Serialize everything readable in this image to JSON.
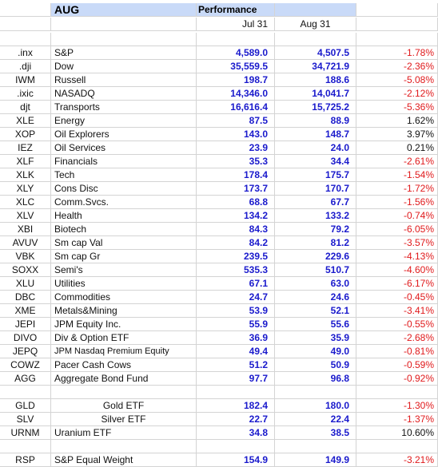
{
  "header": {
    "month": "AUG",
    "performance_label": "Performance"
  },
  "dates": {
    "start": "Jul 31",
    "end": "Aug 31"
  },
  "colors": {
    "header_fill": "#c9daf8",
    "value_blue": "#1a1acc",
    "negative_red": "#e0191b"
  },
  "rows": [
    {
      "ticker": "",
      "name": "",
      "start": "",
      "end": "",
      "change": "",
      "sign": "pos"
    },
    {
      "ticker": ".inx",
      "name": "S&P",
      "start": "4,589.0",
      "end": "4,507.5",
      "change": "-1.78%",
      "sign": "neg"
    },
    {
      "ticker": ".dji",
      "name": "Dow",
      "start": "35,559.5",
      "end": "34,721.9",
      "change": "-2.36%",
      "sign": "neg"
    },
    {
      "ticker": "IWM",
      "name": "Russell",
      "start": "198.7",
      "end": "188.6",
      "change": "-5.08%",
      "sign": "neg"
    },
    {
      "ticker": ".ixic",
      "name": "NASADQ",
      "start": "14,346.0",
      "end": "14,041.7",
      "change": "-2.12%",
      "sign": "neg"
    },
    {
      "ticker": "djt",
      "name": "Transports",
      "start": "16,616.4",
      "end": "15,725.2",
      "change": "-5.36%",
      "sign": "neg"
    },
    {
      "ticker": "XLE",
      "name": "Energy",
      "start": "87.5",
      "end": "88.9",
      "change": "1.62%",
      "sign": "pos"
    },
    {
      "ticker": "XOP",
      "name": "Oil Explorers",
      "start": "143.0",
      "end": "148.7",
      "change": "3.97%",
      "sign": "pos"
    },
    {
      "ticker": "IEZ",
      "name": "Oil Services",
      "start": "23.9",
      "end": "24.0",
      "change": "0.21%",
      "sign": "pos"
    },
    {
      "ticker": "XLF",
      "name": "Financials",
      "start": "35.3",
      "end": "34.4",
      "change": "-2.61%",
      "sign": "neg"
    },
    {
      "ticker": "XLK",
      "name": "Tech",
      "start": "178.4",
      "end": "175.7",
      "change": "-1.54%",
      "sign": "neg"
    },
    {
      "ticker": "XLY",
      "name": "Cons Disc",
      "start": "173.7",
      "end": "170.7",
      "change": "-1.72%",
      "sign": "neg"
    },
    {
      "ticker": "XLC",
      "name": "Comm.Svcs.",
      "start": "68.8",
      "end": "67.7",
      "change": "-1.56%",
      "sign": "neg"
    },
    {
      "ticker": "XLV",
      "name": "Health",
      "start": "134.2",
      "end": "133.2",
      "change": "-0.74%",
      "sign": "neg"
    },
    {
      "ticker": "XBI",
      "name": "Biotech",
      "start": "84.3",
      "end": "79.2",
      "change": "-6.05%",
      "sign": "neg"
    },
    {
      "ticker": "AVUV",
      "name": "Sm cap Val",
      "start": "84.2",
      "end": "81.2",
      "change": "-3.57%",
      "sign": "neg"
    },
    {
      "ticker": "VBK",
      "name": "Sm cap Gr",
      "start": "239.5",
      "end": "229.6",
      "change": "-4.13%",
      "sign": "neg"
    },
    {
      "ticker": "SOXX",
      "name": "Semi's",
      "start": "535.3",
      "end": "510.7",
      "change": "-4.60%",
      "sign": "neg"
    },
    {
      "ticker": "XLU",
      "name": "Utilities",
      "start": "67.1",
      "end": "63.0",
      "change": "-6.17%",
      "sign": "neg"
    },
    {
      "ticker": "DBC",
      "name": "Commodities",
      "start": "24.7",
      "end": "24.6",
      "change": "-0.45%",
      "sign": "neg"
    },
    {
      "ticker": "XME",
      "name": "Metals&Mining",
      "start": "53.9",
      "end": "52.1",
      "change": "-3.41%",
      "sign": "neg"
    },
    {
      "ticker": "JEPI",
      "name": "JPM  Equity Inc.",
      "start": "55.9",
      "end": "55.6",
      "change": "-0.55%",
      "sign": "neg"
    },
    {
      "ticker": "DIVO",
      "name": "Div & Option ETF",
      "start": "36.9",
      "end": "35.9",
      "change": "-2.68%",
      "sign": "neg"
    },
    {
      "ticker": "JEPQ",
      "name": "JPM Nasdaq Premium Equity",
      "start": "49.4",
      "end": "49.0",
      "change": "-0.81%",
      "sign": "neg",
      "small": true
    },
    {
      "ticker": "COWZ",
      "name": "Pacer Cash Cows",
      "start": "51.2",
      "end": "50.9",
      "change": "-0.59%",
      "sign": "neg"
    },
    {
      "ticker": "AGG",
      "name": "Aggregate Bond Fund",
      "start": "97.7",
      "end": "96.8",
      "change": "-0.92%",
      "sign": "neg"
    },
    {
      "ticker": "",
      "name": "",
      "start": "",
      "end": "",
      "change": "",
      "sign": "pos"
    },
    {
      "ticker": "GLD",
      "name": "Gold ETF",
      "start": "182.4",
      "end": "180.0",
      "change": "-1.30%",
      "sign": "neg",
      "centered": true
    },
    {
      "ticker": "SLV",
      "name": "Silver ETF",
      "start": "22.7",
      "end": "22.4",
      "change": "-1.37%",
      "sign": "neg",
      "centered": true
    },
    {
      "ticker": "URNM",
      "name": "Uranium ETF",
      "start": "34.8",
      "end": "38.5",
      "change": "10.60%",
      "sign": "pos"
    },
    {
      "ticker": "",
      "name": "",
      "start": "",
      "end": "",
      "change": "",
      "sign": "pos"
    },
    {
      "ticker": "RSP",
      "name": "S&P Equal Weight",
      "start": "154.9",
      "end": "149.9",
      "change": "-3.21%",
      "sign": "neg"
    }
  ]
}
